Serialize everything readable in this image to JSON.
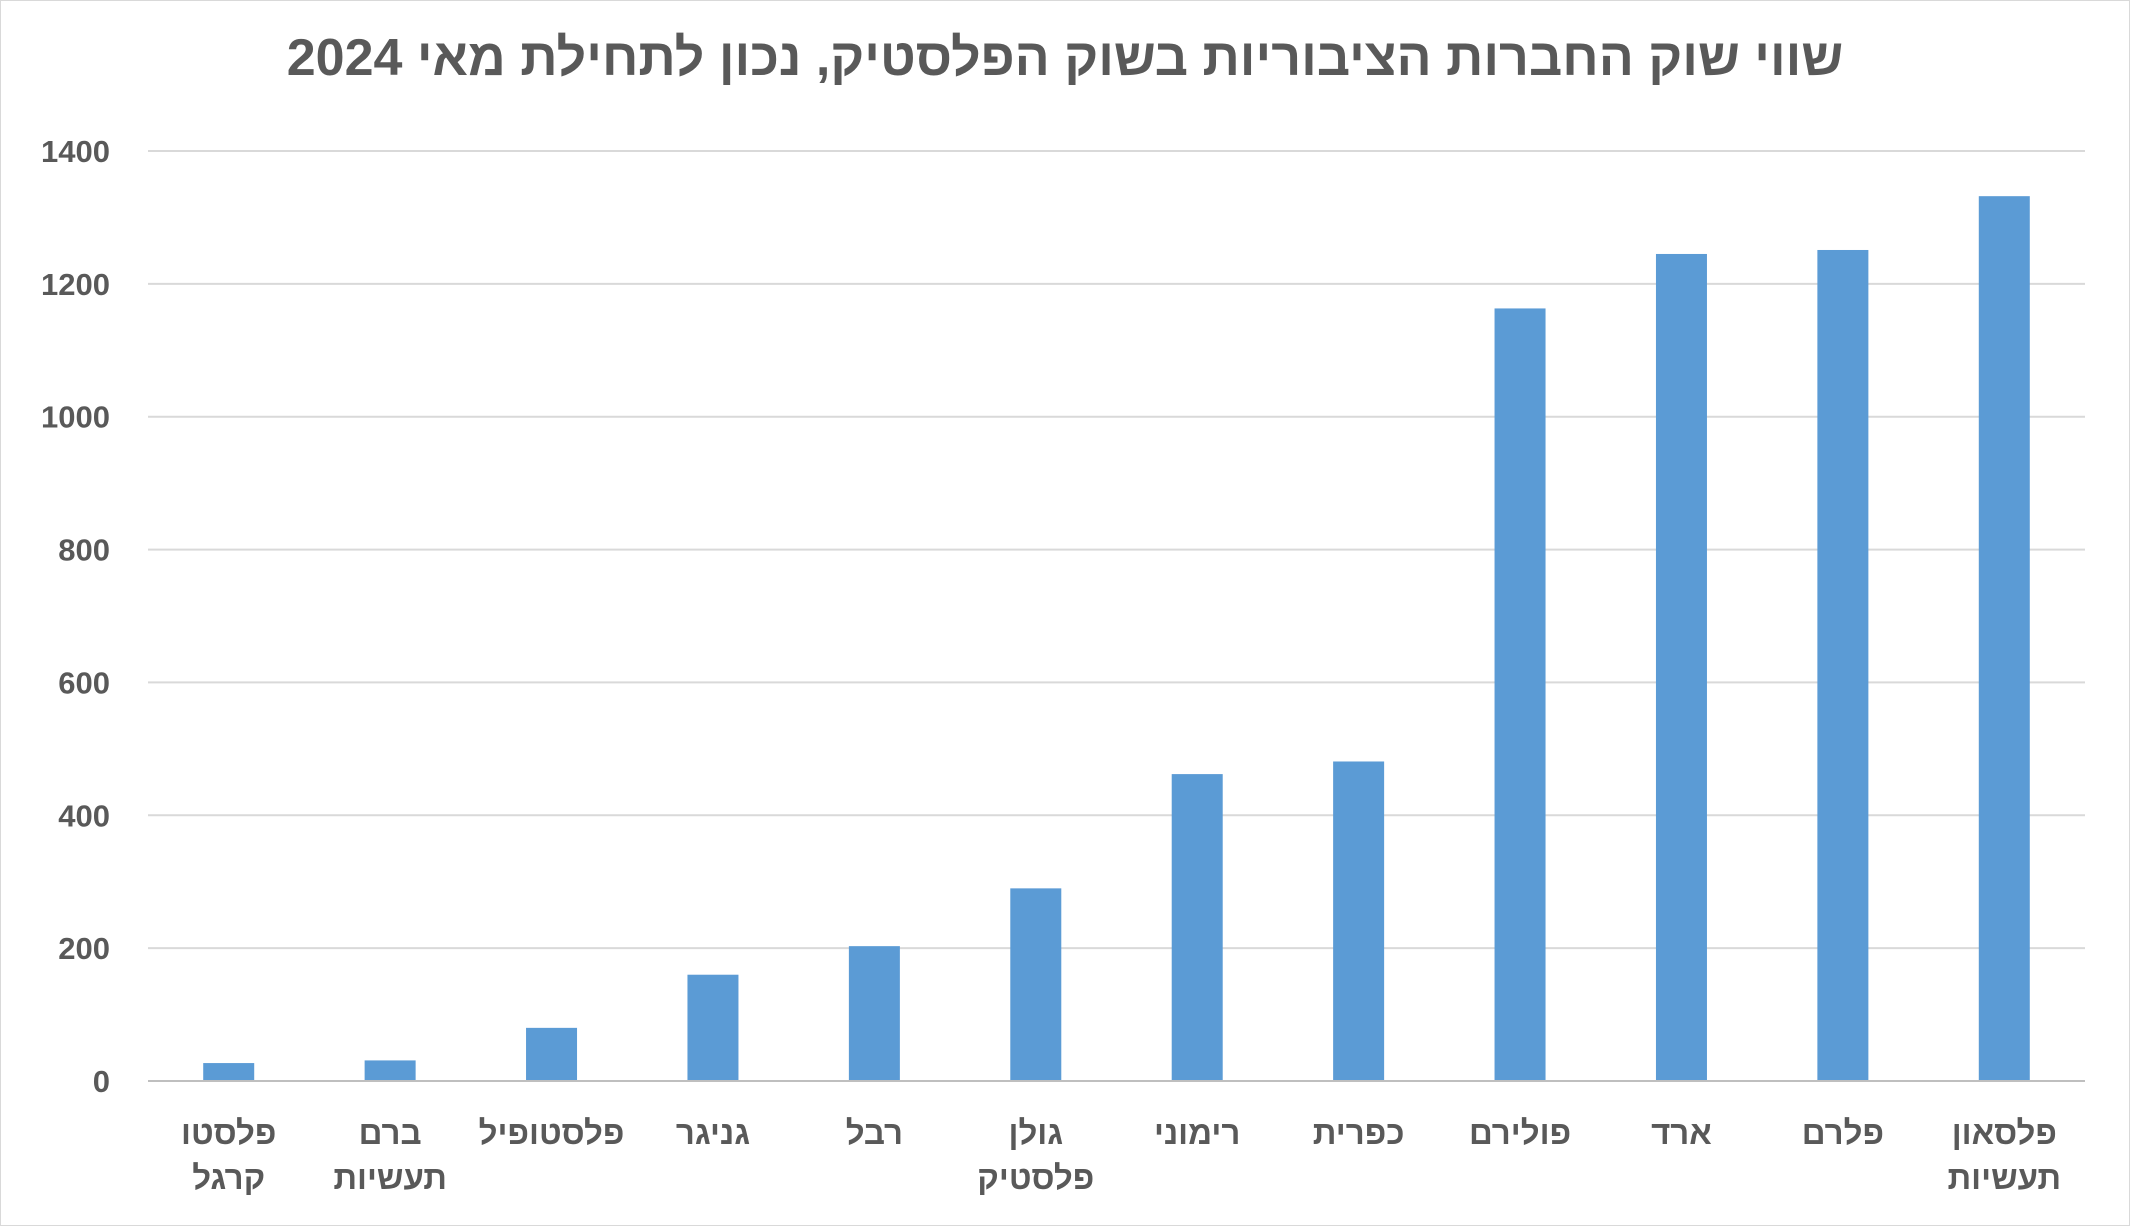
{
  "chart_data": {
    "type": "bar",
    "title": "שווי שוק החברות הציבוריות בשוק הפלסטיק, נכון לתחילת מאי 2024",
    "xlabel": "",
    "ylabel": "",
    "ylim": [
      0,
      1400
    ],
    "yticks": [
      0,
      200,
      400,
      600,
      800,
      1000,
      1200,
      1400
    ],
    "grid": true,
    "legend": "none",
    "bar_color": "#5b9bd5",
    "categories": [
      [
        "פלסטו",
        "קרגל"
      ],
      [
        "ברם",
        "תעשיות"
      ],
      [
        "פלסטופיל"
      ],
      [
        "גניגר"
      ],
      [
        "רבל"
      ],
      [
        "גולן",
        "פלסטיק"
      ],
      [
        "רימוני"
      ],
      [
        "כפרית"
      ],
      [
        "פולירם"
      ],
      [
        "ארד"
      ],
      [
        "פלרם"
      ],
      [
        "פלסאון",
        "תעשיות"
      ]
    ],
    "values": [
      27,
      31,
      80,
      160,
      203,
      290,
      462,
      481,
      1163,
      1245,
      1251,
      1332
    ]
  }
}
